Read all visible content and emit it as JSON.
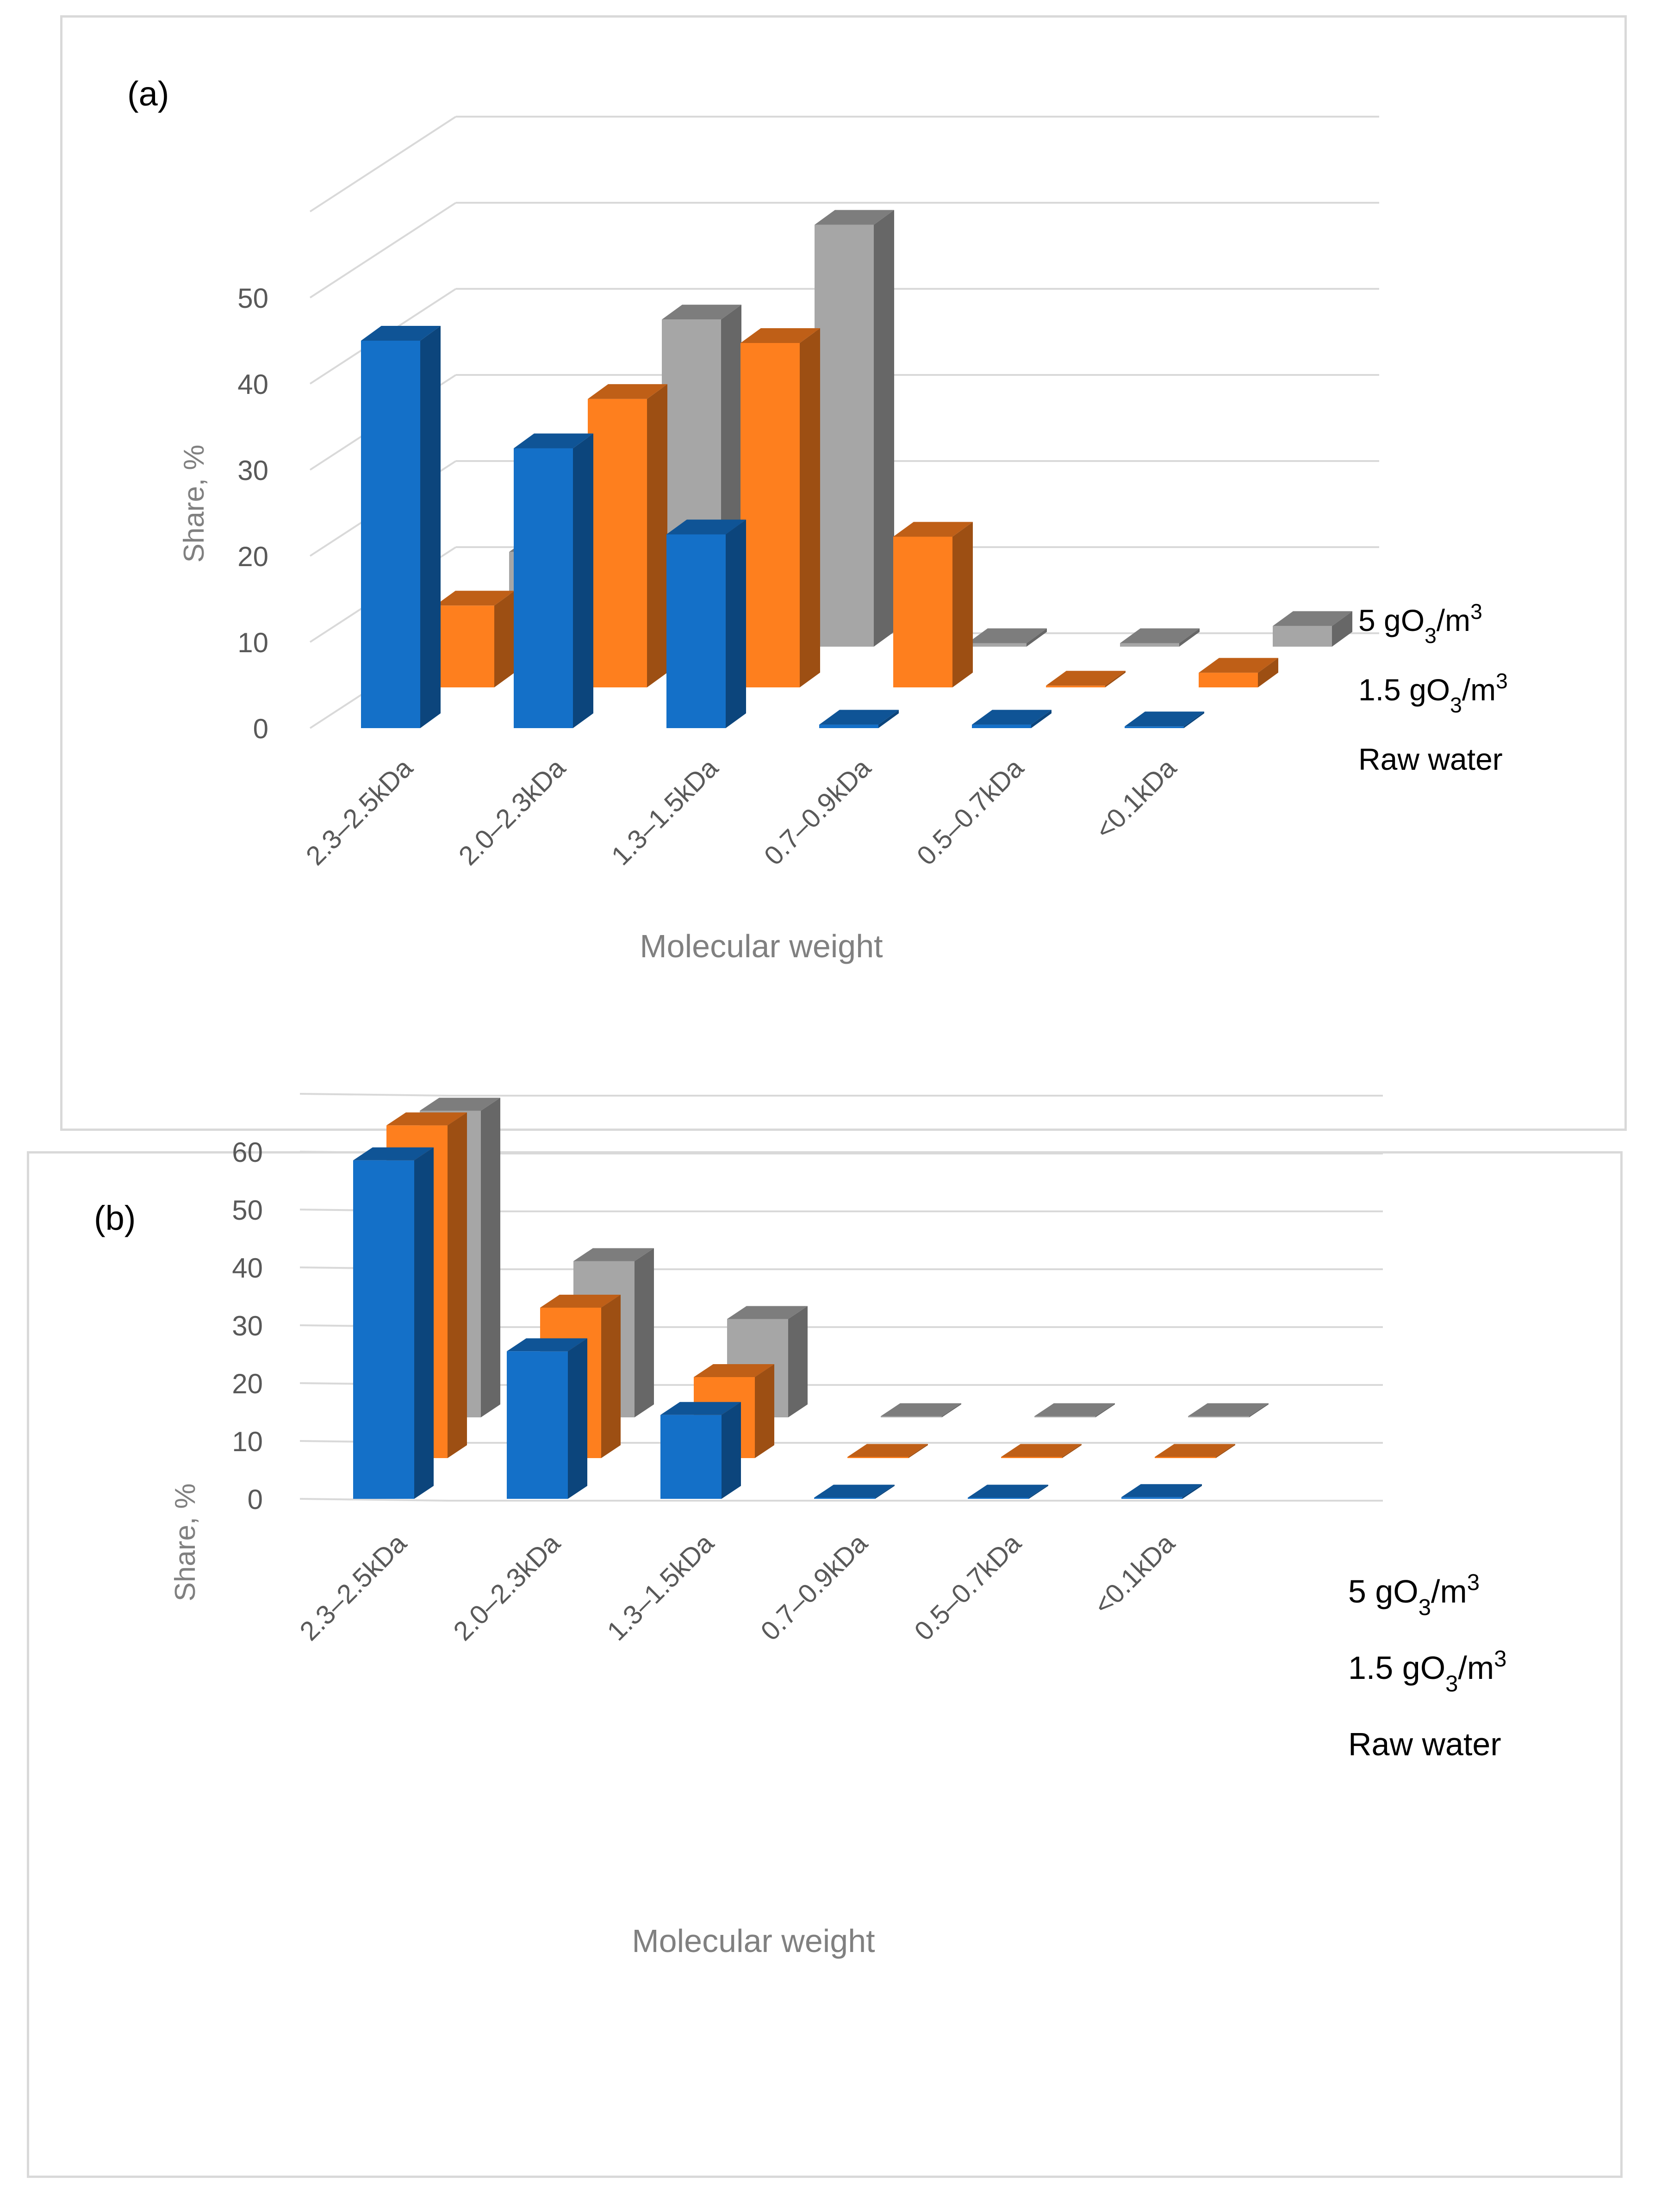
{
  "chart_data": [
    {
      "panel_label": "(a)",
      "type": "bar",
      "title": "",
      "xlabel": "Molecular weight",
      "ylabel": "Share, %",
      "yticks": [
        0,
        10,
        20,
        30,
        40,
        50
      ],
      "categories": [
        "2.3–2.5kDa",
        "2.0–2.3kDa",
        "1.3–1.5kDa",
        "0.7–0.9kDa",
        "0.5–0.7kDa",
        "<0.1kDa"
      ],
      "series": [
        {
          "name": "Raw water",
          "values": [
            45,
            32.5,
            22.5,
            0.4,
            0.4,
            0.2
          ],
          "color": "#1470c8"
        },
        {
          "name": "1.5 gO3/m3",
          "values": [
            9.5,
            33.5,
            40,
            17.5,
            0.2,
            1.7
          ],
          "color": "#fe7f1e"
        },
        {
          "name": "5 gO3/m3",
          "values": [
            11,
            38,
            49,
            0.4,
            0.4,
            2.4
          ],
          "color": "#a6a6a6"
        }
      ]
    },
    {
      "panel_label": "(b)",
      "type": "bar",
      "title": "",
      "xlabel": "Molecular weight",
      "ylabel": "Share, %",
      "yticks": [
        0,
        10,
        20,
        30,
        40,
        50,
        60
      ],
      "categories": [
        "2.3–2.5kDa",
        "2.0–2.3kDa",
        "1.3–1.5kDa",
        "0.7–0.9kDa",
        "0.5–0.7kDa",
        "<0.1kDa"
      ],
      "series": [
        {
          "name": "Raw water",
          "values": [
            58.5,
            25.5,
            14.5,
            0.2,
            0.2,
            0.3
          ],
          "color": "#1470c8"
        },
        {
          "name": "1.5 gO3/m3",
          "values": [
            57.5,
            26,
            14,
            0.2,
            0.2,
            0.2
          ],
          "color": "#fe7f1e"
        },
        {
          "name": "5 gO3/m3",
          "values": [
            53,
            27,
            17,
            0.2,
            0.2,
            0.2
          ],
          "color": "#a6a6a6"
        }
      ]
    }
  ]
}
